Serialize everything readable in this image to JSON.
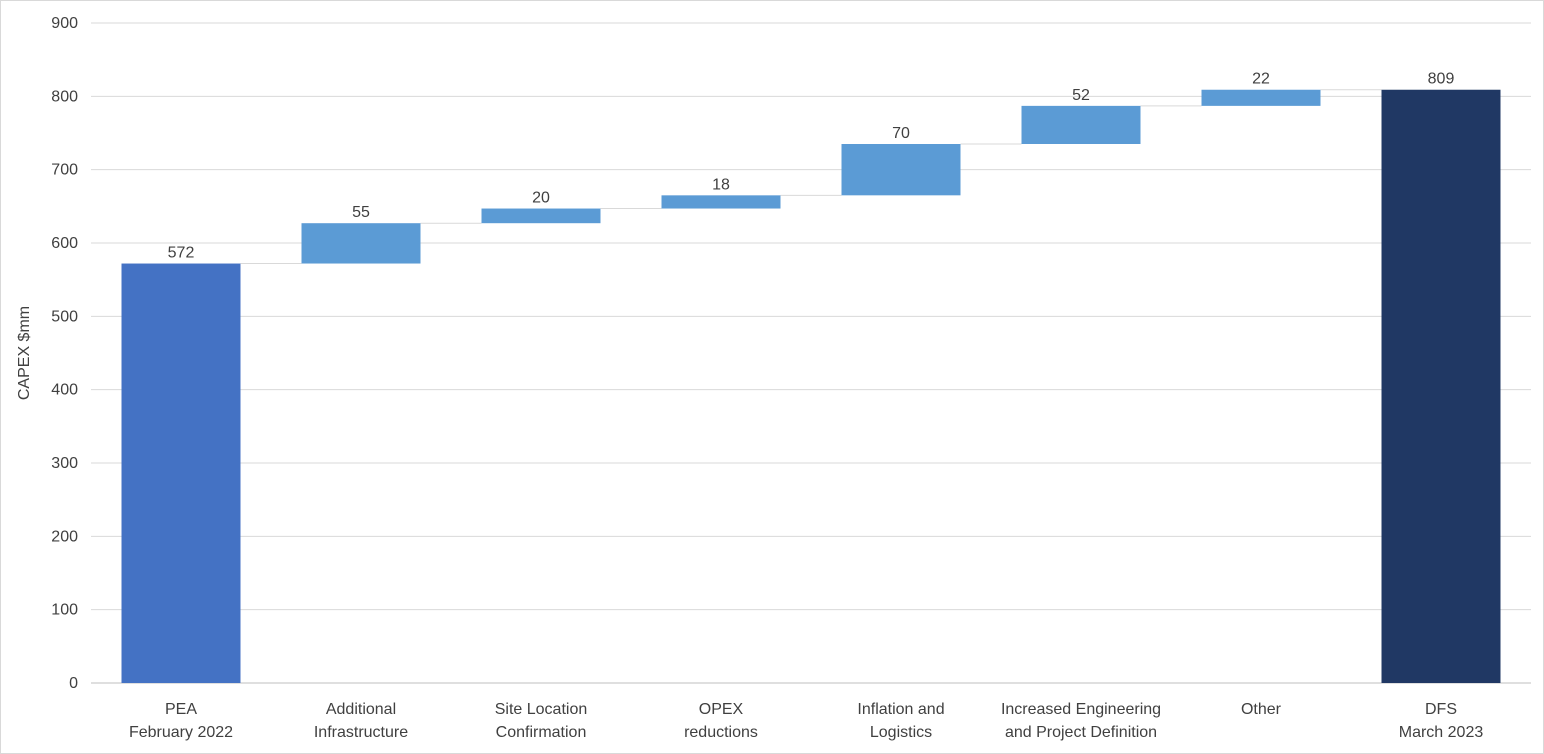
{
  "chart_data": {
    "type": "bar",
    "subtype": "waterfall",
    "title": "",
    "xlabel": "",
    "ylabel": "CAPEX $mm",
    "ylim": [
      0,
      900
    ],
    "yticks": [
      "0",
      "100",
      "200",
      "300",
      "400",
      "500",
      "600",
      "700",
      "800",
      "900"
    ],
    "grid": true,
    "legend": "none",
    "categories": [
      [
        "PEA",
        "February 2022"
      ],
      [
        "Additional",
        "Infrastructure"
      ],
      [
        "Site Location",
        "Confirmation"
      ],
      [
        "OPEX",
        "reductions"
      ],
      [
        "Inflation and",
        "Logistics"
      ],
      [
        "Increased Engineering",
        "and Project Definition"
      ],
      [
        "Other"
      ],
      [
        "DFS",
        "March 2023"
      ]
    ],
    "steps": [
      {
        "kind": "total",
        "value": 572,
        "label": "572"
      },
      {
        "kind": "delta",
        "value": 55,
        "label": "55"
      },
      {
        "kind": "delta",
        "value": 20,
        "label": "20"
      },
      {
        "kind": "delta",
        "value": 18,
        "label": "18"
      },
      {
        "kind": "delta",
        "value": 70,
        "label": "70"
      },
      {
        "kind": "delta",
        "value": 52,
        "label": "52"
      },
      {
        "kind": "delta",
        "value": 22,
        "label": "22"
      },
      {
        "kind": "total",
        "value": 809,
        "label": "809"
      }
    ],
    "colors": {
      "start_total": "#4472c4",
      "increase": "#5b9bd5",
      "end_total": "#203864",
      "gridline": "#d9d9d9",
      "connector": "#d9d9d9",
      "text": "#404040"
    }
  }
}
